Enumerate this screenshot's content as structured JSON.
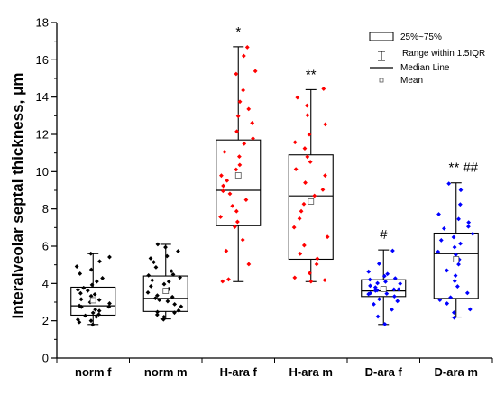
{
  "chart_data": {
    "type": "box",
    "ylabel": "Interalveolar septal thickness, μm",
    "ylim": [
      0,
      18
    ],
    "yticks": [
      0,
      2,
      4,
      6,
      8,
      10,
      12,
      14,
      16,
      18
    ],
    "categories": [
      "norm f",
      "norm m",
      "H-ara f",
      "H-ara m",
      "D-ara f",
      "D-ara m"
    ],
    "legend": {
      "position": "top-right",
      "items": [
        "25%~75%",
        "Range within 1.5IQR",
        "Median Line",
        "Mean"
      ]
    },
    "colors": [
      "#000000",
      "#000000",
      "#ff0000",
      "#ff0000",
      "#0000ff",
      "#0000ff"
    ],
    "boxes": [
      {
        "category": "norm f",
        "whisker_low": 1.8,
        "q1": 2.3,
        "median": 2.8,
        "q3": 3.8,
        "whisker_high": 5.6,
        "mean": 3.1,
        "annotation": "",
        "points": [
          1.8,
          1.9,
          2.0,
          2.1,
          2.2,
          2.3,
          2.3,
          2.4,
          2.5,
          2.6,
          2.7,
          2.8,
          2.8,
          2.9,
          3.0,
          3.1,
          3.2,
          3.3,
          3.4,
          3.5,
          3.6,
          3.7,
          3.8,
          3.9,
          4.1,
          4.3,
          4.5,
          4.7,
          4.9,
          5.2,
          5.4,
          5.6
        ]
      },
      {
        "category": "norm m",
        "whisker_low": 2.1,
        "q1": 2.5,
        "median": 3.2,
        "q3": 4.4,
        "whisker_high": 6.1,
        "mean": 3.6,
        "annotation": "",
        "points": [
          2.1,
          2.2,
          2.3,
          2.4,
          2.5,
          2.6,
          2.8,
          2.9,
          3.0,
          3.1,
          3.2,
          3.3,
          3.4,
          3.5,
          3.7,
          3.9,
          4.0,
          4.1,
          4.2,
          4.3,
          4.4,
          4.5,
          4.7,
          4.9,
          5.1,
          5.3,
          5.5,
          5.7,
          5.9,
          6.1
        ]
      },
      {
        "category": "H-ara f",
        "whisker_low": 4.1,
        "q1": 7.1,
        "median": 9.0,
        "q3": 11.7,
        "whisker_high": 16.7,
        "mean": 9.8,
        "annotation": "*",
        "points": [
          4.1,
          4.2,
          5.0,
          5.7,
          6.3,
          7.0,
          7.3,
          7.6,
          7.9,
          8.2,
          8.5,
          8.8,
          9.0,
          9.2,
          9.5,
          9.8,
          10.1,
          10.4,
          10.8,
          11.1,
          11.5,
          11.8,
          12.2,
          12.6,
          13.0,
          13.4,
          13.8,
          14.4,
          15.2,
          15.4,
          16.2,
          16.7
        ]
      },
      {
        "category": "H-ara m",
        "whisker_low": 4.1,
        "q1": 5.3,
        "median": 8.7,
        "q3": 10.9,
        "whisker_high": 14.4,
        "mean": 8.4,
        "annotation": "**",
        "points": [
          4.1,
          4.2,
          4.3,
          4.6,
          5.0,
          5.3,
          5.6,
          6.0,
          6.5,
          7.0,
          7.5,
          7.9,
          8.3,
          8.7,
          9.0,
          9.4,
          9.8,
          10.1,
          10.5,
          10.8,
          11.2,
          11.6,
          12.0,
          12.5,
          13.0,
          13.5,
          14.0,
          14.4
        ]
      },
      {
        "category": "D-ara f",
        "whisker_low": 1.8,
        "q1": 3.3,
        "median": 3.6,
        "q3": 4.2,
        "whisker_high": 5.8,
        "mean": 3.7,
        "annotation": "#",
        "points": [
          1.8,
          2.2,
          2.6,
          2.9,
          3.1,
          3.2,
          3.3,
          3.4,
          3.5,
          3.5,
          3.6,
          3.6,
          3.7,
          3.7,
          3.8,
          3.9,
          4.0,
          4.0,
          4.1,
          4.2,
          4.3,
          4.4,
          4.5,
          4.6,
          5.1,
          5.8
        ]
      },
      {
        "category": "D-ara m",
        "whisker_low": 2.2,
        "q1": 3.2,
        "median": 5.6,
        "q3": 6.7,
        "whisker_high": 9.4,
        "mean": 5.3,
        "annotation": "** ##",
        "points": [
          2.2,
          2.4,
          2.6,
          2.9,
          3.1,
          3.3,
          3.5,
          3.8,
          4.1,
          4.4,
          4.7,
          5.0,
          5.3,
          5.5,
          5.7,
          5.9,
          6.1,
          6.3,
          6.5,
          6.7,
          6.9,
          7.1,
          7.3,
          7.5,
          7.7,
          8.2,
          9.0,
          9.4
        ]
      }
    ]
  }
}
